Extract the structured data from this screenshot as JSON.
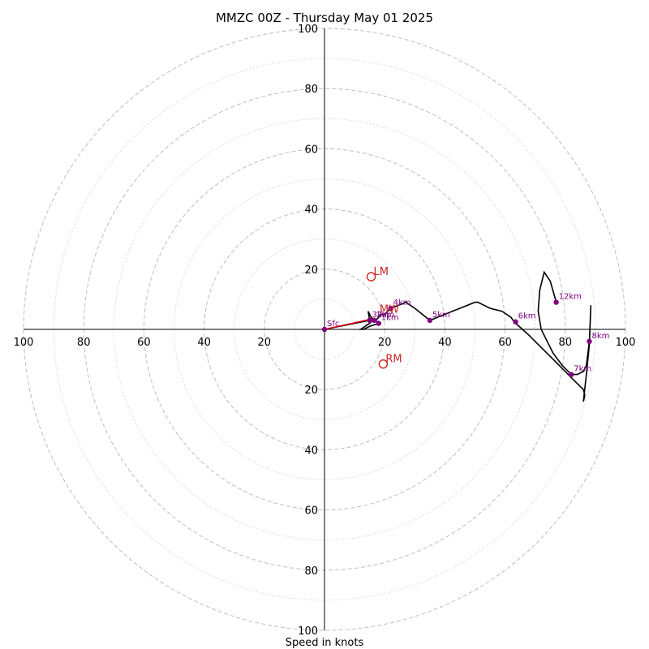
{
  "chart_data": {
    "type": "hodograph",
    "title": "MMZC 00Z - Thursday May 01 2025",
    "xlabel": "Speed in knots",
    "units": "knots",
    "range": [
      -100,
      100
    ],
    "rings_major": [
      20,
      40,
      60,
      80,
      100
    ],
    "rings_minor": [
      10,
      30,
      50,
      70,
      90
    ],
    "x_ticks": [
      {
        "value": -100,
        "label": "100"
      },
      {
        "value": -80,
        "label": "80"
      },
      {
        "value": -60,
        "label": "60"
      },
      {
        "value": -40,
        "label": "40"
      },
      {
        "value": -20,
        "label": "20"
      },
      {
        "value": 20,
        "label": "20"
      },
      {
        "value": 40,
        "label": "40"
      },
      {
        "value": 60,
        "label": "60"
      },
      {
        "value": 80,
        "label": "80"
      },
      {
        "value": 100,
        "label": "100"
      }
    ],
    "y_ticks": [
      {
        "value": 100,
        "label": "100"
      },
      {
        "value": 80,
        "label": "80"
      },
      {
        "value": 60,
        "label": "60"
      },
      {
        "value": 40,
        "label": "40"
      },
      {
        "value": 20,
        "label": "20"
      },
      {
        "value": -20,
        "label": "20"
      },
      {
        "value": -40,
        "label": "40"
      },
      {
        "value": -60,
        "label": "60"
      },
      {
        "value": -80,
        "label": "80"
      },
      {
        "value": -100,
        "label": "100"
      }
    ],
    "hodograph": {
      "u": [
        0,
        15,
        14.5,
        15.5,
        17,
        18,
        15,
        13,
        12,
        15,
        16,
        17,
        18,
        19,
        20,
        22,
        27,
        30,
        35,
        40,
        45,
        50,
        51,
        53,
        55,
        59,
        62,
        63,
        68,
        72,
        76,
        80,
        82,
        84,
        86,
        86.5,
        86,
        87,
        88,
        88.5,
        88,
        87,
        86,
        84,
        82,
        79,
        76,
        74,
        72,
        71,
        71.5,
        73,
        75,
        77
      ],
      "v": [
        0,
        3,
        6,
        4,
        3,
        2,
        1,
        0,
        0,
        2,
        3,
        3,
        4,
        5,
        5,
        7,
        9,
        7,
        3,
        5,
        7,
        9,
        9,
        8,
        7,
        6,
        4,
        2.5,
        -2,
        -6,
        -10,
        -14,
        -16,
        -18,
        -20,
        -22,
        -24,
        -15,
        -5,
        8,
        -4,
        -12,
        -14,
        -15,
        -15,
        -12,
        -8,
        -4,
        0,
        6,
        13,
        19,
        16,
        9
      ]
    },
    "height_markers": [
      {
        "label": "Sfc",
        "u": 0,
        "v": 0
      },
      {
        "label": "1km",
        "u": 18,
        "v": 2
      },
      {
        "label": "2km",
        "u": 16.5,
        "v": 3
      },
      {
        "label": "3km",
        "u": 15,
        "v": 3
      },
      {
        "label": "4km",
        "u": 22,
        "v": 7
      },
      {
        "label": "5km",
        "u": 35,
        "v": 3
      },
      {
        "label": "6km",
        "u": 63.5,
        "v": 2.5
      },
      {
        "label": "7km",
        "u": 82,
        "v": -15
      },
      {
        "label": "8km",
        "u": 88,
        "v": -4
      },
      {
        "label": "12km",
        "u": 77,
        "v": 9
      }
    ],
    "storm_motion": [
      {
        "label": "LM",
        "u": 15.5,
        "v": 17.5
      },
      {
        "label": "RM",
        "u": 19.5,
        "v": -11.5
      },
      {
        "label": "MW",
        "u": 17.5,
        "v": 5
      }
    ],
    "shear_vector": {
      "u0": 0,
      "v0": 0,
      "u1": 16,
      "v1": 3.5
    },
    "colors": {
      "trace": "#000000",
      "height_markers": "#800080",
      "storm_motion": "#cc2222",
      "shear": "#dd0000",
      "grid": "#bdbdbd"
    }
  }
}
